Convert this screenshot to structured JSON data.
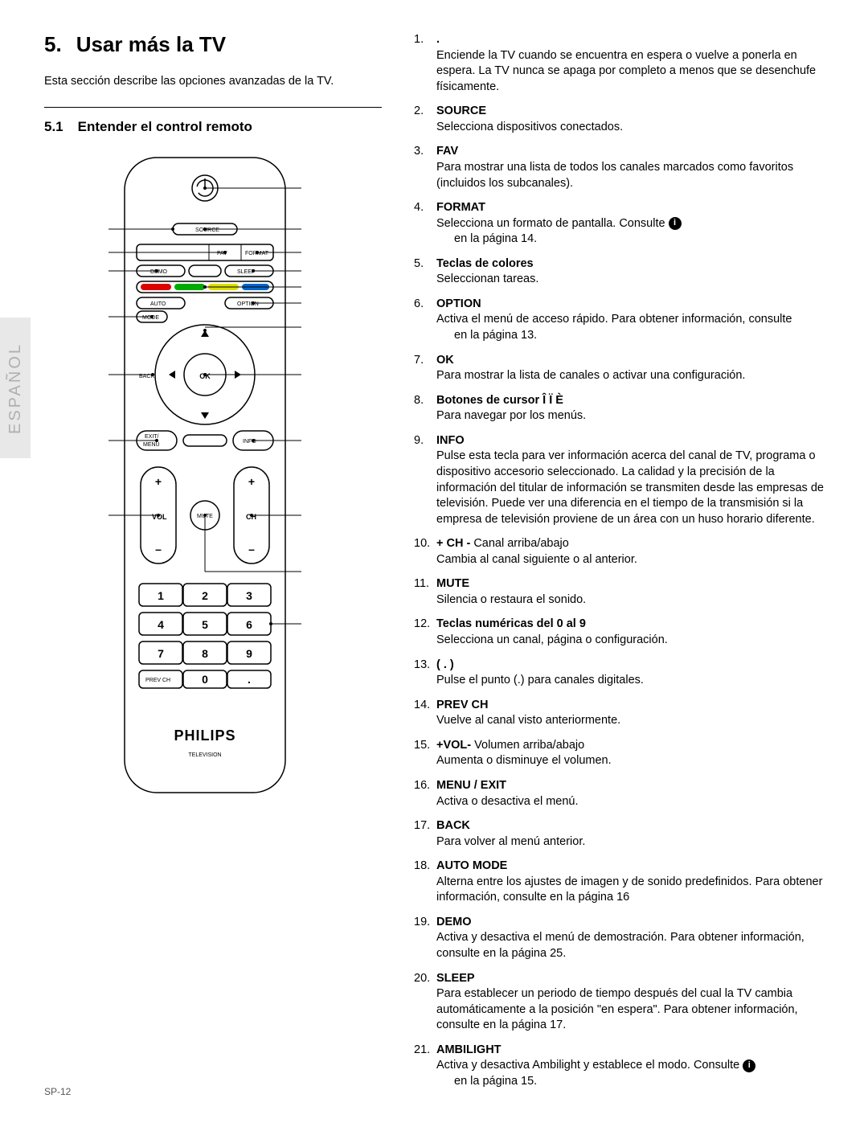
{
  "langTab": "ESPAÑOL",
  "pageNum": "SP-12",
  "h1_num": "5.",
  "h1_text": "Usar más la TV",
  "intro": "Esta sección describe las opciones avanzadas de la TV.",
  "h2_num": "5.1",
  "h2_text": "Entender el control remoto",
  "remote": {
    "source": "SOURCE",
    "fav": "FAV",
    "format": "FORMAT",
    "demo": "DEMO",
    "sleep": "SLEEP",
    "auto": "AUTO",
    "mode": "MODE",
    "option": "OPTION",
    "back": "BACK",
    "ok": "OK",
    "exit": "EXIT/",
    "menu": "MENU",
    "info": "INFO",
    "vol": "VOL",
    "mute": "MUTE",
    "ch": "CH",
    "k1": "1",
    "k2": "2",
    "k3": "3",
    "k4": "4",
    "k5": "5",
    "k6": "6",
    "k7": "7",
    "k8": "8",
    "k9": "9",
    "k0": "0",
    "prevch": "PREV CH",
    "dot": ".",
    "brand": "PHILIPS",
    "television": "TELEVISION"
  },
  "items": [
    {
      "n": "1.",
      "t": ".",
      "d": "Enciende la TV cuando se encuentra en espera o vuelve a ponerla en espera. La TV nunca se apaga por completo a menos que se desenchufe físicamente."
    },
    {
      "n": "2.",
      "t": "SOURCE",
      "d": "Selecciona dispositivos conectados."
    },
    {
      "n": "3.",
      "t": "FAV",
      "d": "Para mostrar una lista de todos los canales marcados como favoritos (incluidos los subcanales)."
    },
    {
      "n": "4.",
      "t": "FORMAT",
      "d": "Selecciona un formato de pantalla. Consulte",
      "icon": true,
      "inset": "en la página 14."
    },
    {
      "n": "5.",
      "t": "Teclas de colores",
      "d": "Seleccionan tareas."
    },
    {
      "n": "6.",
      "t": "OPTION",
      "d": "Activa el menú de acceso rápido. Para obtener información, consulte",
      "inset": " en la página 13."
    },
    {
      "n": "7.",
      "t": "OK",
      "d": "Para mostrar la lista de canales o activar una configuración."
    },
    {
      "n": "8.",
      "t": "Botones de cursor Î Ï È",
      "d": "Para navegar por los menús."
    },
    {
      "n": "9.",
      "t": "INFO",
      "d": "Pulse esta tecla para ver información acerca del canal de TV, programa o dispositivo accesorio seleccionado. La calidad y la precisión de la información del titular de información se transmiten desde las empresas de televisión. Puede ver una diferencia en el tiempo de la transmisión si la empresa de televisión proviene de un área con un huso horario diferente."
    },
    {
      "n": "10.",
      "t": "+ CH -",
      "tExtra": " Canal arriba/abajo",
      "d": "Cambia al canal siguiente o al anterior."
    },
    {
      "n": "11.",
      "t": "MUTE",
      "d": "Silencia o restaura el sonido."
    },
    {
      "n": "12.",
      "t": "Teclas numéricas del 0 al 9",
      "d": "Selecciona un canal, página o configuración."
    },
    {
      "n": "13.",
      "t": "( . )",
      "d": "Pulse el punto (.) para canales digitales."
    },
    {
      "n": "14.",
      "t": "PREV CH",
      "d": "Vuelve al canal visto anteriormente."
    },
    {
      "n": "15.",
      "t": "+VOL-",
      "tExtra": " Volumen arriba/abajo",
      "d": "Aumenta o disminuye el volumen."
    },
    {
      "n": "16.",
      "t": "MENU / EXIT",
      "d": "Activa o desactiva el menú."
    },
    {
      "n": "17.",
      "t": "BACK",
      "d": "Para volver al menú anterior."
    },
    {
      "n": "18.",
      "t": "AUTO MODE",
      "d": "Alterna entre los ajustes de imagen y de sonido predefinidos. Para obtener información, consulte   en la página 16"
    },
    {
      "n": "19.",
      "t": "DEMO",
      "d": "Activa y desactiva el menú de demostración. Para obtener información, consulte                                   en la página 25."
    },
    {
      "n": "20.",
      "t": "SLEEP",
      "d": "Para establecer un periodo de tiempo después del cual la TV cambia automáticamente a la posición \"en espera\". Para obtener información, consulte   en la página 17."
    },
    {
      "n": "21.",
      "t": "AMBILIGHT",
      "d": "Activa y desactiva Ambilight y establece el modo. Consulte",
      "icon": true,
      "inset": "en la página 15."
    }
  ]
}
